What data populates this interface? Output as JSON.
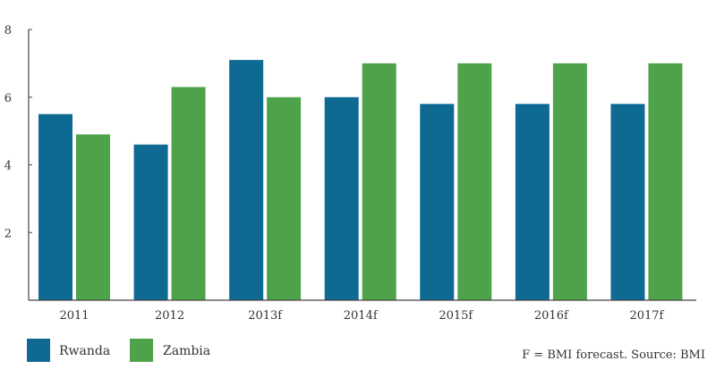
{
  "chart_data": {
    "type": "bar",
    "title": "",
    "xlabel": "",
    "ylabel": "",
    "categories": [
      "2011",
      "2012",
      "2013f",
      "2014f",
      "2015f",
      "2016f",
      "2017f"
    ],
    "series": [
      {
        "name": "Rwanda",
        "color": "#0e6a93",
        "values": [
          5.5,
          4.6,
          7.1,
          6.0,
          5.8,
          5.8,
          5.8
        ]
      },
      {
        "name": "Zambia",
        "color": "#4ea34a",
        "values": [
          4.9,
          6.3,
          6.0,
          7.0,
          7.0,
          7.0,
          7.0
        ]
      }
    ],
    "ylim": [
      0,
      8
    ],
    "yticks": [
      "2",
      "4",
      "6",
      "8"
    ],
    "grid": false,
    "legend_position": "bottom-left",
    "note": "F = BMI forecast. Source: BMI"
  }
}
